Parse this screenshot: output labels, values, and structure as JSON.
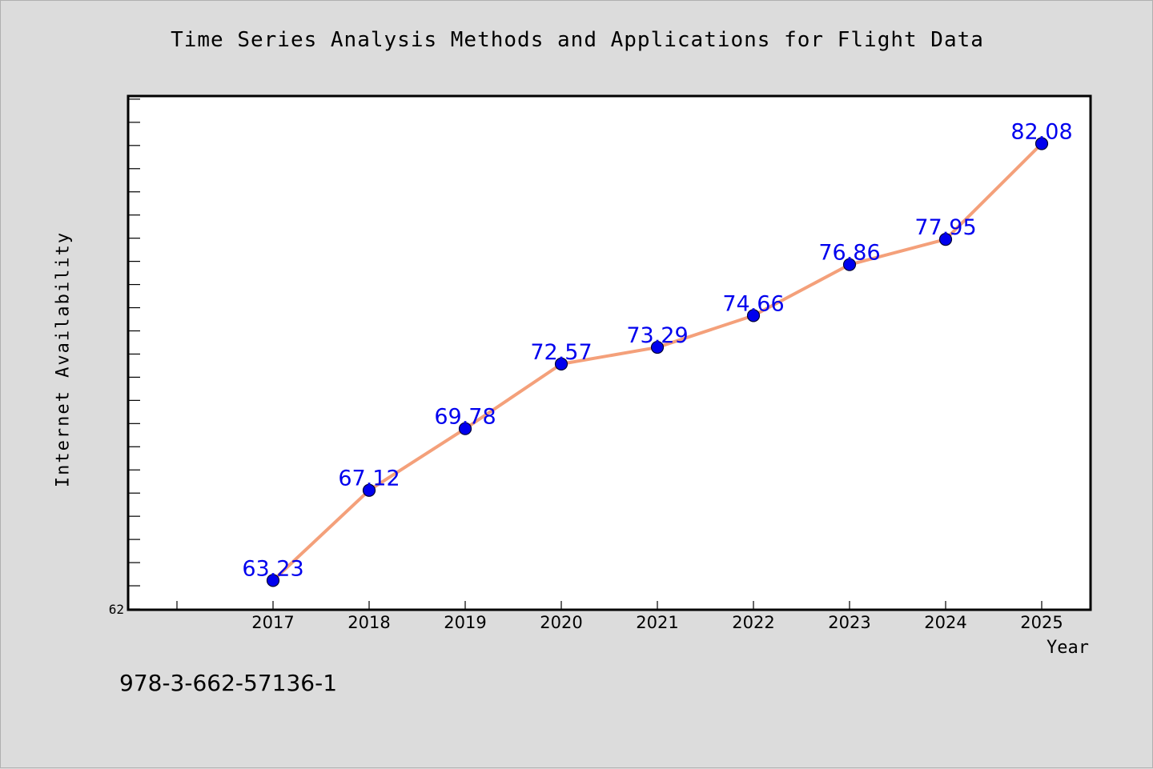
{
  "chart_data": {
    "type": "line",
    "title": "Time Series Analysis Methods and Applications for Flight Data",
    "xlabel": "Year",
    "ylabel": "Internet Availability",
    "categories": [
      "2017",
      "2018",
      "2019",
      "2020",
      "2021",
      "2022",
      "2023",
      "2024",
      "2025"
    ],
    "series": [
      {
        "values": [
          63.23,
          67.12,
          69.78,
          72.57,
          73.29,
          74.66,
          76.86,
          77.95,
          82.08
        ],
        "labels": [
          "63.23",
          "67.12",
          "69.78",
          "72.57",
          "73.29",
          "74.66",
          "76.86",
          "77.95",
          "82.08"
        ],
        "line_color": "#f4a07a",
        "marker_color": "#0000ee"
      }
    ],
    "ylim": [
      62,
      84.1
    ],
    "y_tick_labels": [
      "62"
    ],
    "label_color": "#0000ee",
    "grid": false,
    "legend": "none"
  },
  "footer": {
    "isbn": "978-3-662-57136-1"
  }
}
